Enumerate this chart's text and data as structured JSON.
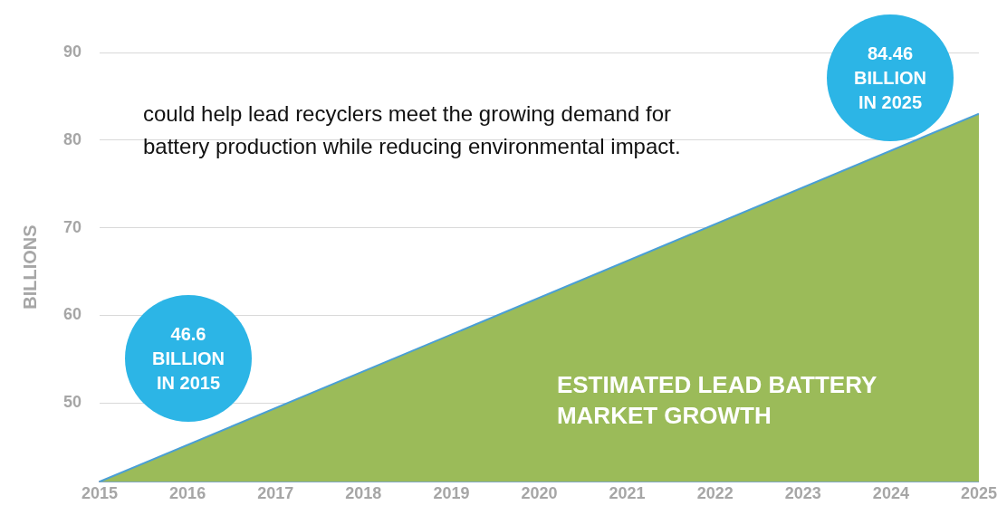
{
  "chart_data": {
    "type": "area",
    "ylabel": "BILLIONS",
    "x": [
      2015,
      2025
    ],
    "series": [
      {
        "name": "ESTIMATED LEAD BATTERY\nMARKET GROWTH",
        "color": "#9bbb59",
        "values": [
          41,
          83
        ]
      }
    ],
    "xlim": [
      2015,
      2025
    ],
    "xticks": [
      2015,
      2016,
      2017,
      2018,
      2019,
      2020,
      2021,
      2022,
      2023,
      2024,
      2025
    ],
    "ylim": [
      41,
      90
    ],
    "yticks": [
      50,
      60,
      70,
      80,
      90
    ],
    "grid": "y",
    "legend": false,
    "annotations": [
      "could help lead recyclers meet the growing demand for battery production while reducing environmental impact.",
      "46.6\nBILLION\nIN 2015",
      "84.46\nBILLION\nIN 2025"
    ]
  }
}
